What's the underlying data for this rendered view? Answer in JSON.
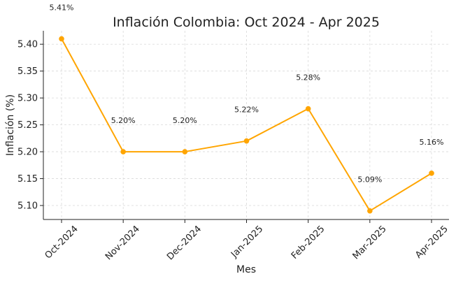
{
  "chart_data": {
    "type": "line",
    "title": "Inflación Colombia: Oct 2024 - Apr 2025",
    "xlabel": "Mes",
    "ylabel": "Inflación (%)",
    "categories": [
      "Oct-2024",
      "Nov-2024",
      "Dec-2024",
      "Jan-2025",
      "Feb-2025",
      "Mar-2025",
      "Apr-2025"
    ],
    "series": [
      {
        "values": [
          5.41,
          5.2,
          5.2,
          5.22,
          5.28,
          5.09,
          5.16
        ],
        "color": "#FFA500"
      }
    ],
    "data_labels": [
      "5.41%",
      "5.20%",
      "5.20%",
      "5.22%",
      "5.28%",
      "5.09%",
      "5.16%"
    ],
    "yticks": [
      "5.10",
      "5.15",
      "5.20",
      "5.25",
      "5.30",
      "5.35",
      "5.40"
    ],
    "ylim": [
      5.074,
      5.425
    ],
    "grid": true,
    "marker": "circle"
  }
}
